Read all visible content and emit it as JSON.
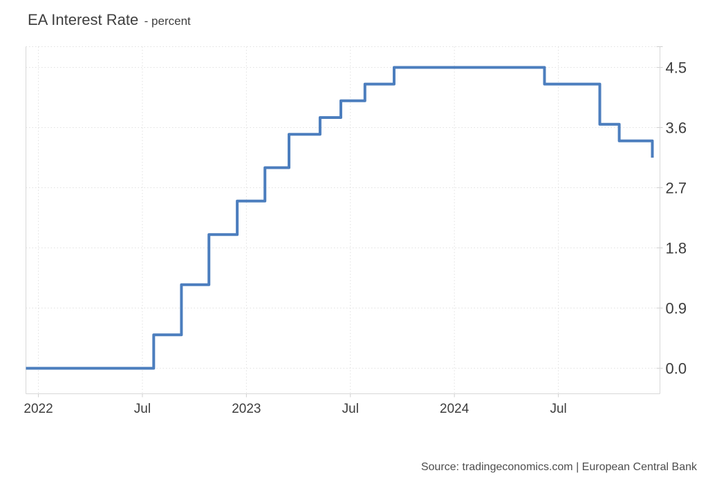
{
  "chart_data": {
    "type": "line",
    "variant": "step",
    "title": "EA Interest Rate",
    "subtitle": "- percent",
    "source": "Source: tradingeconomics.com | European Central Bank",
    "xlabel": "",
    "ylabel": "percent",
    "legend": "none",
    "grid": "dotted",
    "line_color": "#4c7ebe",
    "ylim": [
      -0.382,
      4.81
    ],
    "xlim_months": [
      -0.72,
      35.86
    ],
    "y_ticks": [
      {
        "label": "0.0",
        "value": 0.0
      },
      {
        "label": "0.9",
        "value": 0.9
      },
      {
        "label": "1.8",
        "value": 1.8
      },
      {
        "label": "2.7",
        "value": 2.7
      },
      {
        "label": "3.6",
        "value": 3.6
      },
      {
        "label": "4.5",
        "value": 4.5
      }
    ],
    "x_ticks": [
      {
        "label": "2022",
        "m": 0
      },
      {
        "label": "Jul",
        "m": 6
      },
      {
        "label": "2023",
        "m": 12
      },
      {
        "label": "Jul",
        "m": 18
      },
      {
        "label": "2024",
        "m": 24
      },
      {
        "label": "Jul",
        "m": 30
      }
    ],
    "series": [
      {
        "name": "EA Interest Rate",
        "steps": [
          {
            "date": "2021-12",
            "m": -0.72,
            "value": 0.0
          },
          {
            "date": "2022-07",
            "m": 6.65,
            "value": 0.5
          },
          {
            "date": "2022-09",
            "m": 8.25,
            "value": 1.25
          },
          {
            "date": "2022-11",
            "m": 9.84,
            "value": 2.0
          },
          {
            "date": "2022-12",
            "m": 11.47,
            "value": 2.5
          },
          {
            "date": "2023-02",
            "m": 13.07,
            "value": 3.0
          },
          {
            "date": "2023-03",
            "m": 14.46,
            "value": 3.5
          },
          {
            "date": "2023-05",
            "m": 16.25,
            "value": 3.75
          },
          {
            "date": "2023-06",
            "m": 17.45,
            "value": 4.0
          },
          {
            "date": "2023-08",
            "m": 18.84,
            "value": 4.25
          },
          {
            "date": "2023-09",
            "m": 20.52,
            "value": 4.5
          },
          {
            "date": "2024-06",
            "m": 29.2,
            "value": 4.25
          },
          {
            "date": "2024-09",
            "m": 32.39,
            "value": 3.65
          },
          {
            "date": "2024-10",
            "m": 33.51,
            "value": 3.4
          },
          {
            "date": "2024-12",
            "m": 35.42,
            "value": 3.15
          }
        ]
      }
    ]
  }
}
